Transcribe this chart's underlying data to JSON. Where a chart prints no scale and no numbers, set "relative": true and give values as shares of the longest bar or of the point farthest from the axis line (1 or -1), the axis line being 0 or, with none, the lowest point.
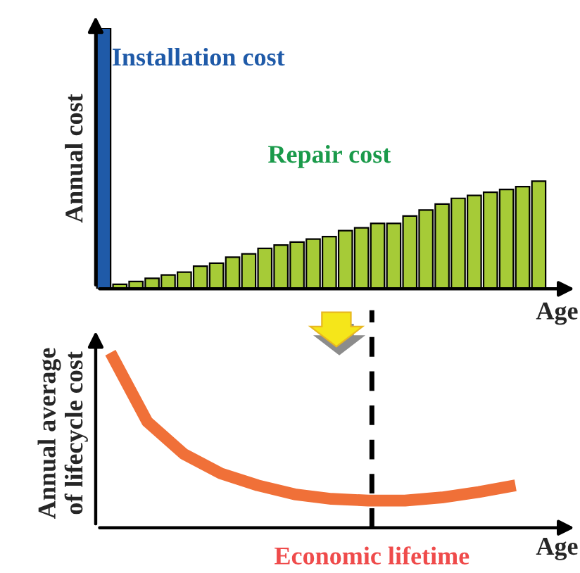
{
  "chart_data": [
    {
      "type": "bar",
      "relative": true,
      "xlabel": "Age",
      "ylabel": "Annual cost",
      "categories": [
        null,
        null,
        null,
        null,
        null,
        null,
        null,
        null,
        null,
        null,
        null,
        null,
        null,
        null,
        null,
        null,
        null,
        null,
        null,
        null,
        null,
        null,
        null,
        null,
        null,
        null,
        null,
        null
      ],
      "values": [
        1,
        0.017,
        0.028,
        0.04,
        0.053,
        0.064,
        0.087,
        0.098,
        0.121,
        0.134,
        0.155,
        0.168,
        0.179,
        0.191,
        0.2,
        0.223,
        0.234,
        0.251,
        0.251,
        0.279,
        0.302,
        0.325,
        0.347,
        0.358,
        0.37,
        0.381,
        0.392,
        0.413
      ],
      "colors": [
        "#1f5aa8",
        "#a6cb37",
        "#a6cb37",
        "#a6cb37",
        "#a6cb37",
        "#a6cb37",
        "#a6cb37",
        "#a6cb37",
        "#a6cb37",
        "#a6cb37",
        "#a6cb37",
        "#a6cb37",
        "#a6cb37",
        "#a6cb37",
        "#a6cb37",
        "#a6cb37",
        "#a6cb37",
        "#a6cb37",
        "#a6cb37",
        "#a6cb37",
        "#a6cb37",
        "#a6cb37",
        "#a6cb37",
        "#a6cb37",
        "#a6cb37",
        "#a6cb37",
        "#a6cb37",
        "#a6cb37"
      ],
      "annotations": [
        "Installation cost",
        "Repair cost"
      ]
    },
    {
      "type": "line",
      "relative": true,
      "xlabel": "Age",
      "ylabel": "Annual average\nof lifecycle cost",
      "categories": [
        null,
        null,
        null,
        null,
        null,
        null,
        null,
        null,
        null,
        null,
        null,
        null
      ],
      "series": [
        {
          "color": "#f07038",
          "values": [
            1,
            0.606,
            0.42,
            0.31,
            0.242,
            0.191,
            0.165,
            0.155,
            0.155,
            0.173,
            0.204,
            0.242
          ]
        }
      ],
      "annotations": [
        "Economic lifetime"
      ]
    }
  ]
}
